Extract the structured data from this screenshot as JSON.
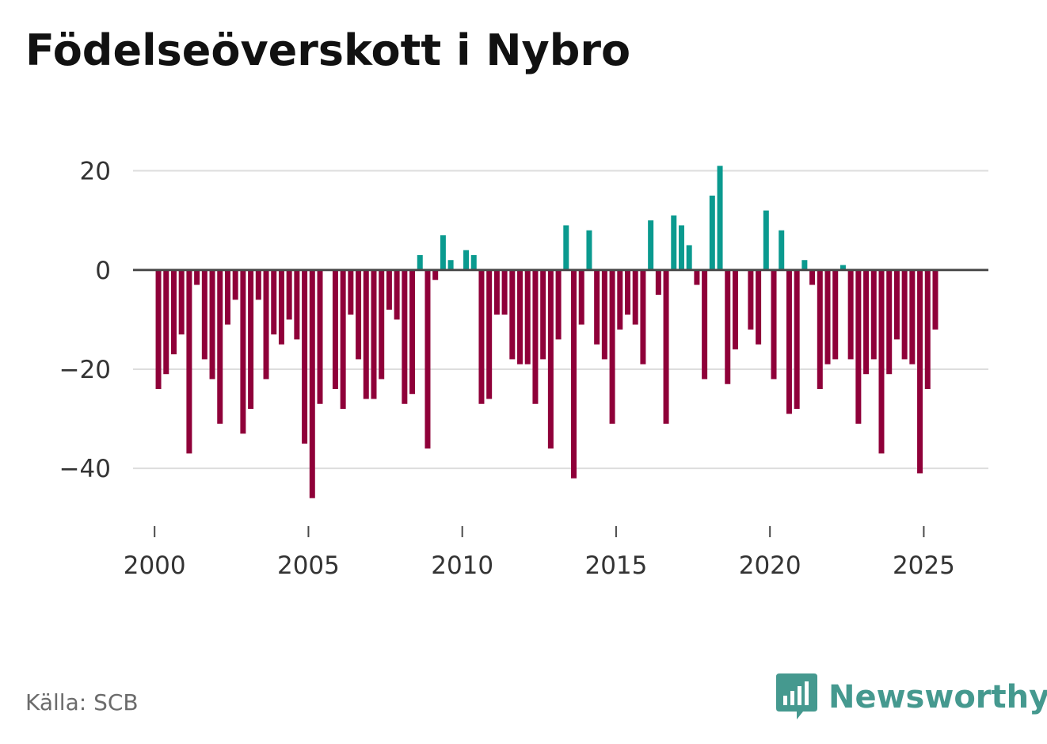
{
  "title": "Födelseöverskott i Nybro",
  "source": "Källa: SCB",
  "brand": {
    "name": "Newsworthy",
    "icon": "newsworthy-bar-chart-speech-icon",
    "color": "#45998f"
  },
  "colors": {
    "positive": "#0a9a8f",
    "negative": "#8f0039",
    "zero_line": "#4a4a4a",
    "grid": "#dddddd",
    "text": "#333333"
  },
  "chart_data": {
    "type": "bar",
    "title": "Födelseöverskott i Nybro",
    "xlabel": "",
    "ylabel": "",
    "frequency": "quarterly",
    "start": "2000 Q1",
    "x_ticks": [
      "2000",
      "2005",
      "2010",
      "2015",
      "2020",
      "2025"
    ],
    "y_ticks": [
      20,
      0,
      -20,
      -40
    ],
    "y_tick_labels": [
      "20",
      "0",
      "−20",
      "−40"
    ],
    "xlim": [
      1999.3,
      2027.1
    ],
    "ylim": [
      -51,
      26
    ],
    "grid": true,
    "values": [
      -24,
      -21,
      -17,
      -13,
      -37,
      -3,
      -18,
      -22,
      -31,
      -11,
      -6,
      -33,
      -28,
      -6,
      -22,
      -13,
      -15,
      -10,
      -14,
      -35,
      -46,
      -27,
      0,
      -24,
      -28,
      -9,
      -18,
      -26,
      -26,
      -22,
      -8,
      -10,
      -27,
      -25,
      3,
      -36,
      -2,
      7,
      2,
      0,
      4,
      3,
      -27,
      -26,
      -9,
      -9,
      -18,
      -19,
      -19,
      -27,
      -18,
      -36,
      -14,
      9,
      -42,
      -11,
      8,
      -15,
      -18,
      -31,
      -12,
      -9,
      -11,
      -19,
      10,
      -5,
      -31,
      11,
      9,
      5,
      -3,
      -22,
      15,
      21,
      -23,
      -16,
      0,
      -12,
      -15,
      12,
      -22,
      8,
      -29,
      -28,
      2,
      -3,
      -24,
      -19,
      -18,
      1,
      -18,
      -31,
      -21,
      -18,
      -37,
      -21,
      -14,
      -18,
      -19,
      -41,
      -24,
      -12
    ]
  }
}
